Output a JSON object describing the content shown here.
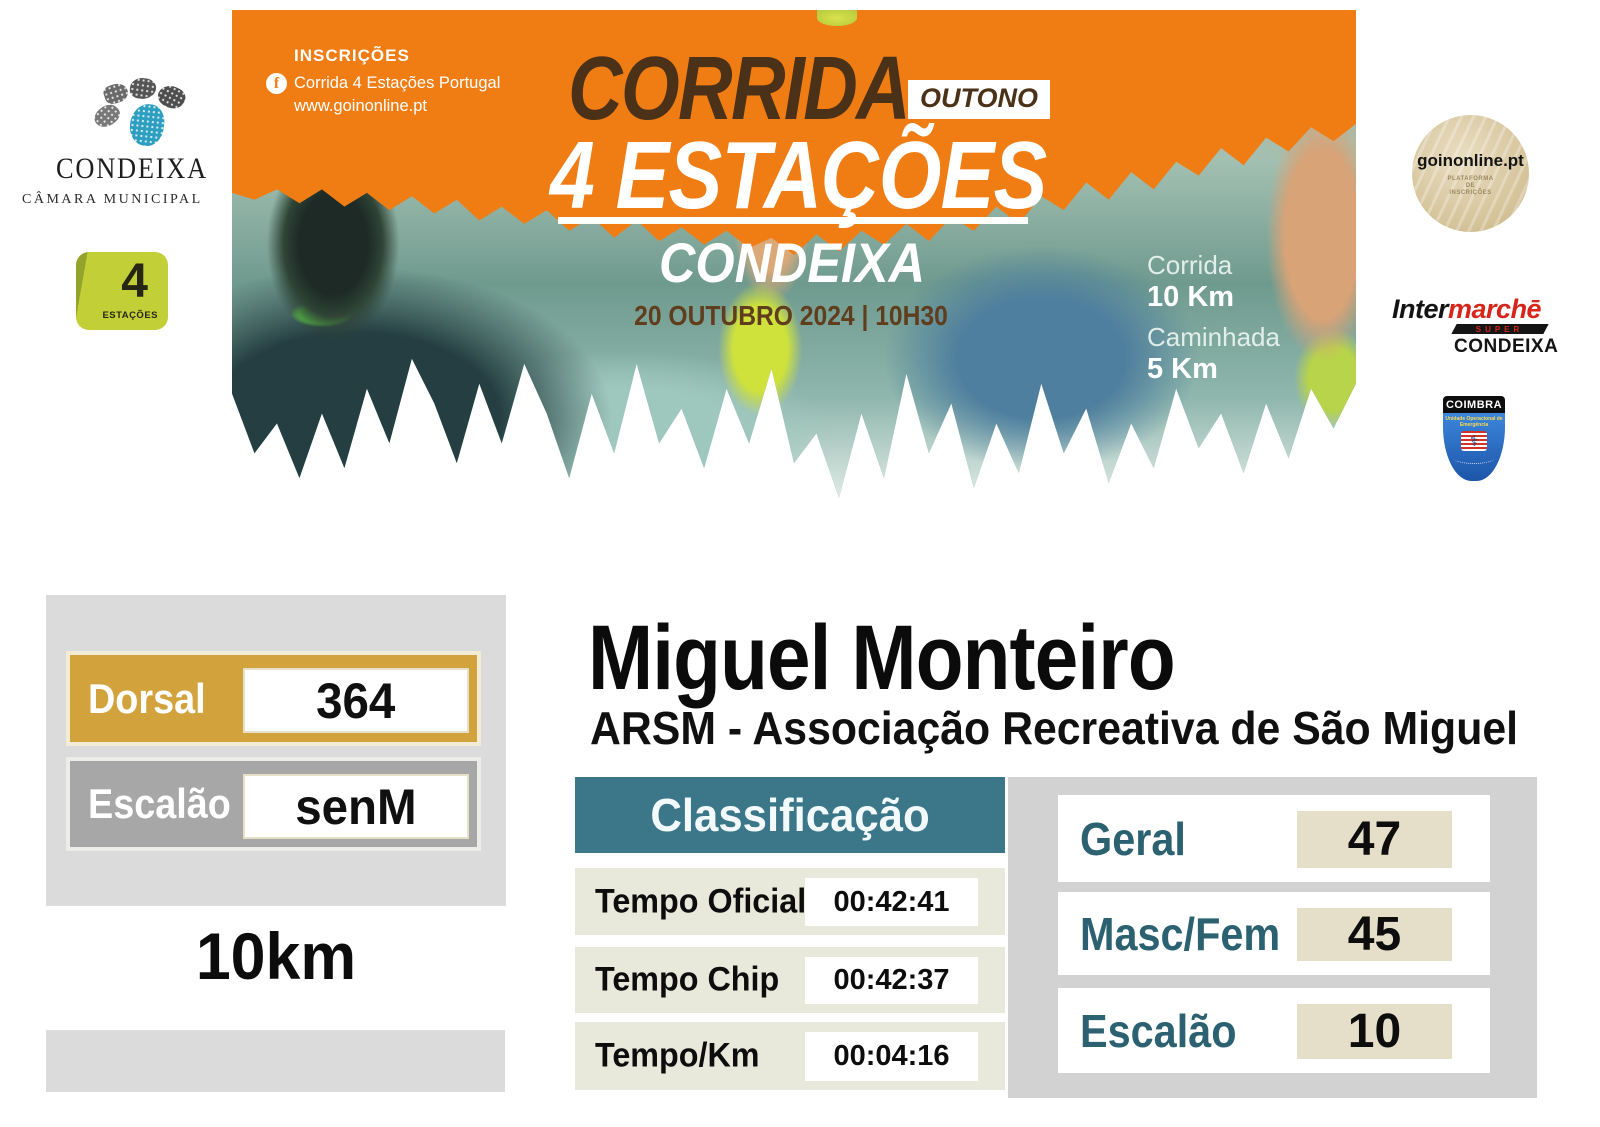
{
  "banner": {
    "inscriptions": {
      "title": "INSCRIÇÕES",
      "facebook_icon": "f",
      "facebook": "Corrida 4 Estações Portugal",
      "website": "www.goinonline.pt"
    },
    "title_line1": "CORRIDA",
    "season_badge": "OUTONO",
    "title_line2": "4 ESTAÇÕES",
    "location": "CONDEIXA",
    "date_line": "20 OUTUBRO 2024 | 10H30",
    "events": [
      {
        "name": "Corrida",
        "distance": "10 Km"
      },
      {
        "name": "Caminhada",
        "distance": "5 Km"
      }
    ],
    "colors": {
      "orange": "#EF7D14",
      "brown": "#4A3118"
    }
  },
  "logos": {
    "condeixa": {
      "name": "CONDEIXA",
      "subtitle": "CÂMARA MUNICIPAL"
    },
    "estacoes_cube": {
      "number": "4",
      "label": "ESTAÇÕES"
    },
    "goinonline": {
      "title": "goinonline.pt",
      "subtitle": "PLATAFORMA\nDE\nINSCRIÇÕES"
    },
    "intermarche": {
      "part1": "Inter",
      "part2": "marchē",
      "bar": "SUPER",
      "city": "CONDEIXA"
    },
    "coimbra": {
      "title": "COIMBRA",
      "line1": "Unidade Operacional de Emergência",
      "emblem_icon": "⚕"
    }
  },
  "athlete": {
    "name": "Miguel Monteiro",
    "club": "ARSM - Associação Recreativa de São Miguel",
    "dorsal_label": "Dorsal",
    "dorsal": "364",
    "escalao_label": "Escalão",
    "escalao": "senM",
    "distance": "10km"
  },
  "classification": {
    "header": "Classificação",
    "rows": [
      {
        "label": "Tempo Oficial",
        "value": "00:42:41"
      },
      {
        "label": "Tempo Chip",
        "value": "00:42:37"
      },
      {
        "label": "Tempo/Km",
        "value": "00:04:16"
      }
    ],
    "rankings": [
      {
        "label": "Geral",
        "value": "47"
      },
      {
        "label": "Masc/Fem",
        "value": "45"
      },
      {
        "label": "Escalão",
        "value": "10"
      }
    ],
    "colors": {
      "teal": "#3B7689",
      "gold": "#D2A23C",
      "gray": "#A7A7A7",
      "beige": "#E5DEC8"
    }
  }
}
